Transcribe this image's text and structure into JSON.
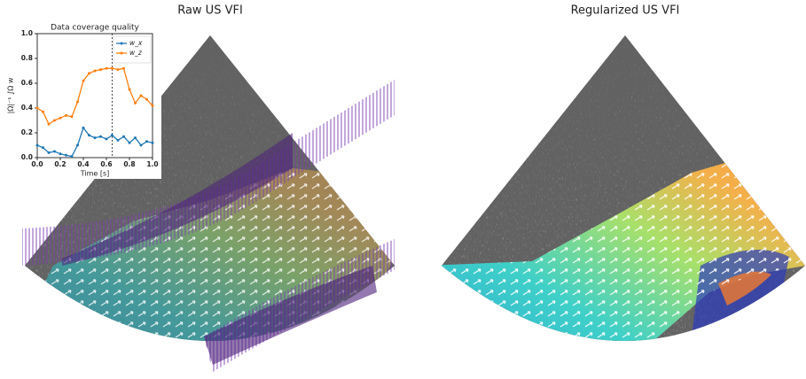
{
  "panels": [
    {
      "title": "Raw US VFI"
    },
    {
      "title": "Regularized US VFI"
    }
  ],
  "chart_data": {
    "type": "line",
    "title": "Data coverage quality",
    "x_label": "Time [s]",
    "y_label": "|Ω|⁻¹ ∫Ω w",
    "x": [
      0,
      0.05,
      0.1,
      0.15,
      0.2,
      0.25,
      0.3,
      0.35,
      0.4,
      0.45,
      0.5,
      0.55,
      0.6,
      0.65,
      0.7,
      0.75,
      0.8,
      0.85,
      0.9,
      0.95,
      1.0
    ],
    "series": [
      {
        "name": "w_x",
        "color": "#1f77b4",
        "values": [
          0.1,
          0.08,
          0.04,
          0.05,
          0.03,
          0.02,
          0.01,
          0.1,
          0.24,
          0.18,
          0.16,
          0.17,
          0.15,
          0.18,
          0.14,
          0.17,
          0.12,
          0.16,
          0.1,
          0.13,
          0.12
        ]
      },
      {
        "name": "w_z",
        "color": "#ff7f0e",
        "values": [
          0.4,
          0.37,
          0.27,
          0.3,
          0.32,
          0.34,
          0.33,
          0.45,
          0.62,
          0.68,
          0.7,
          0.71,
          0.72,
          0.72,
          0.71,
          0.72,
          0.55,
          0.44,
          0.5,
          0.47,
          0.42
        ]
      }
    ],
    "vline": 0.65,
    "xlim": [
      0,
      1
    ],
    "ylim": [
      0,
      1
    ],
    "xticks": [
      {
        "value": 0,
        "label": "0.0"
      },
      0.2,
      0.4,
      0.6,
      0.8,
      {
        "value": 1,
        "label": "1.0"
      }
    ],
    "yticks": [
      {
        "value": 0,
        "label": "0.0"
      },
      0.2,
      0.4,
      0.6,
      0.8,
      {
        "value": 1,
        "label": "1.0"
      }
    ],
    "legend": "upper right"
  }
}
